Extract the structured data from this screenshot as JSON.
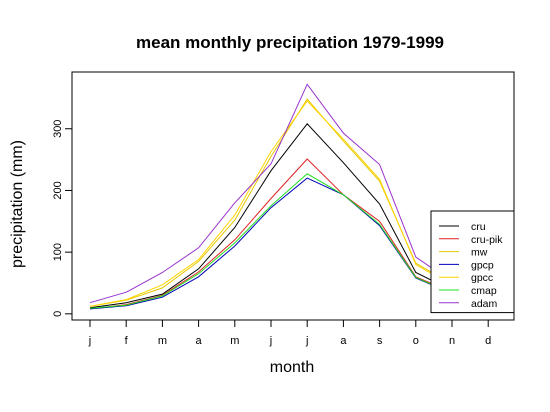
{
  "chart_data": {
    "type": "line",
    "title": "mean monthly precipitation 1979-1999",
    "xlabel": "month",
    "ylabel": "precipitation (mm)",
    "categories": [
      "j",
      "f",
      "m",
      "a",
      "m",
      "j",
      "j",
      "a",
      "s",
      "o",
      "n",
      "d"
    ],
    "ylim": [
      -10,
      392
    ],
    "yticks": [
      0,
      100,
      200,
      300
    ],
    "grid": false,
    "legend_position": "bottom-right",
    "series": [
      {
        "name": "cru",
        "color": "#000000",
        "values": [
          10,
          18,
          32,
          73,
          140,
          232,
          308,
          245,
          178,
          67,
          38,
          13
        ]
      },
      {
        "name": "cru-pik",
        "color": "#dd2222",
        "values": [
          8,
          15,
          30,
          68,
          120,
          187,
          251,
          193,
          150,
          60,
          35,
          12
        ]
      },
      {
        "name": "mw",
        "color": "#e6c800",
        "values": [
          12,
          22,
          42,
          85,
          152,
          255,
          348,
          280,
          215,
          82,
          48,
          18
        ]
      },
      {
        "name": "gpcp",
        "color": "#0000bb",
        "values": [
          8,
          13,
          27,
          60,
          110,
          172,
          220,
          193,
          143,
          58,
          33,
          11
        ]
      },
      {
        "name": "gpcc",
        "color": "#ffd400",
        "values": [
          12,
          23,
          47,
          88,
          160,
          263,
          345,
          283,
          218,
          80,
          46,
          17
        ]
      },
      {
        "name": "cmap",
        "color": "#22dd22",
        "values": [
          9,
          14,
          29,
          65,
          115,
          175,
          227,
          193,
          145,
          59,
          33,
          12
        ]
      },
      {
        "name": "adam",
        "color": "#9933cc",
        "values": [
          18,
          35,
          67,
          107,
          180,
          243,
          372,
          293,
          242,
          92,
          52,
          22
        ]
      }
    ]
  }
}
